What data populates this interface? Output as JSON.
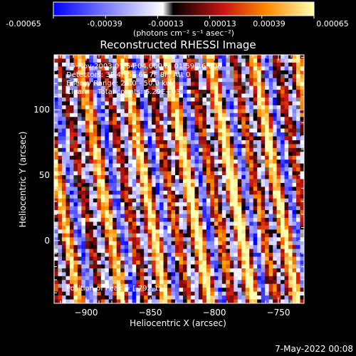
{
  "colorbar": {
    "ticks": [
      "-0.00065",
      "-0.00039",
      "-0.00013",
      "0.00013",
      "0.00039",
      "0.00065"
    ],
    "unit_label": "(photons cm⁻² s⁻¹ asec⁻²)",
    "range": [
      -0.00065,
      0.00065
    ]
  },
  "annotations": {
    "time_range": "15-Nov-2003 01:54:04.000 to 01:59:16.000",
    "detectors": "Detectors: 3F 4F 5F 6F 7F 8F, Att 0",
    "energy": "Energy Range: 25.0 - 50.0 keV",
    "clean": "Clean     Total counts: 6.29E+03",
    "peak": "Position of Peak = [-792,15]"
  },
  "footer_date": "7-May-2022 00:08",
  "chart_data": {
    "type": "heatmap",
    "title": "Reconstructed RHESSI Image",
    "xlabel": "Heliocentric X (arcsec)",
    "ylabel": "Heliocentric Y (arcsec)",
    "xlim": [
      -925,
      -730
    ],
    "ylim": [
      -48,
      142
    ],
    "x_ticks": [
      -900,
      -850,
      -800,
      -750
    ],
    "x_tick_labels": [
      "−900",
      "−850",
      "−800",
      "−750"
    ],
    "y_ticks": [
      0,
      50,
      100
    ],
    "y_tick_labels": [
      "0",
      "50",
      "100"
    ],
    "colormap": "blue-white-red-yellow",
    "peak_position": [
      -792,
      15
    ],
    "pattern": {
      "columns": 64,
      "rows": 64,
      "stripe_period_arcsec": 17,
      "stripe_tilt": 0.18
    }
  }
}
